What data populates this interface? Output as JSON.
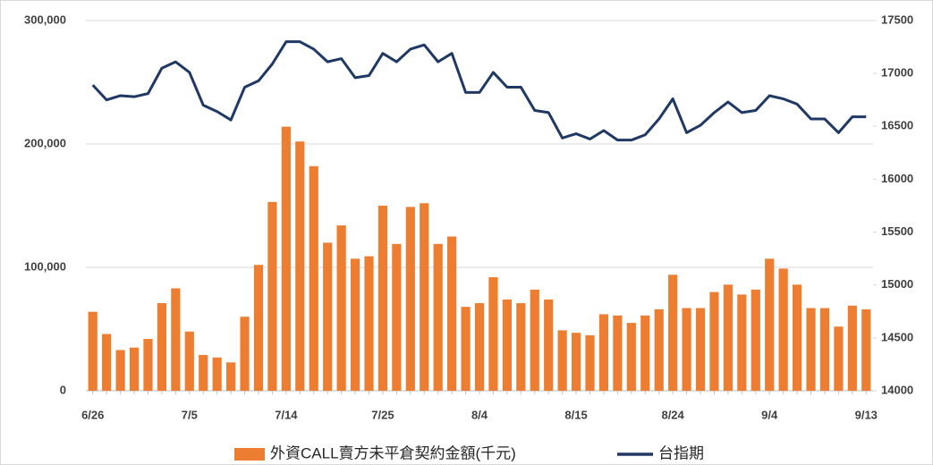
{
  "chart_data": {
    "type": "bar_line",
    "categories": [
      "6/26",
      null,
      null,
      null,
      null,
      null,
      null,
      "7/5",
      null,
      null,
      null,
      null,
      null,
      null,
      "7/14",
      null,
      null,
      null,
      null,
      null,
      null,
      "7/25",
      null,
      null,
      null,
      null,
      null,
      null,
      "8/4",
      null,
      null,
      null,
      null,
      null,
      null,
      "8/15",
      null,
      null,
      null,
      null,
      null,
      null,
      "8/24",
      null,
      null,
      null,
      null,
      null,
      null,
      "9/4",
      null,
      null,
      null,
      null,
      null,
      null,
      "9/13"
    ],
    "series": [
      {
        "name": "外資CALL賣方未平倉契約金額(千元)",
        "type": "bar",
        "color": "#ED7D31",
        "axis": "y",
        "values": [
          64000,
          46000,
          33000,
          35000,
          42000,
          71000,
          83000,
          48000,
          29000,
          27000,
          23000,
          60000,
          102000,
          153000,
          214000,
          202000,
          182000,
          120000,
          134000,
          107000,
          109000,
          150000,
          119000,
          149000,
          152000,
          119000,
          125000,
          68000,
          71000,
          92000,
          74000,
          71000,
          82000,
          74000,
          49000,
          47000,
          45000,
          62000,
          61000,
          55000,
          61000,
          66000,
          94000,
          67000,
          67000,
          80000,
          86000,
          78000,
          82000,
          107000,
          99000,
          86000,
          67000,
          67000,
          52000,
          69000,
          66000
        ]
      },
      {
        "name": "台指期",
        "type": "line",
        "color": "#1F3864",
        "axis": "y2",
        "values": [
          16890,
          16750,
          16790,
          16780,
          16810,
          17050,
          17110,
          17010,
          16700,
          16640,
          16560,
          16870,
          16930,
          17090,
          17300,
          17300,
          17230,
          17110,
          17140,
          16960,
          16980,
          17190,
          17110,
          17230,
          17270,
          17110,
          17190,
          16820,
          16820,
          17010,
          16870,
          16870,
          16650,
          16630,
          16390,
          16430,
          16380,
          16460,
          16370,
          16370,
          16420,
          16570,
          16760,
          16440,
          16510,
          16630,
          16730,
          16630,
          16650,
          16790,
          16760,
          16710,
          16570,
          16570,
          16440,
          16590,
          16590
        ]
      }
    ],
    "ylim": [
      0,
      300000
    ],
    "yticks": [
      0,
      {
        "value": 100000,
        "label": "100,000"
      },
      {
        "value": 200000,
        "label": "200,000"
      },
      {
        "value": 300000,
        "label": "300,000"
      }
    ],
    "y2lim": [
      14000,
      17500
    ],
    "y2ticks": [
      14000,
      14500,
      15000,
      15500,
      16000,
      16500,
      17000,
      17500
    ],
    "grid": true,
    "legend": "bottom"
  }
}
